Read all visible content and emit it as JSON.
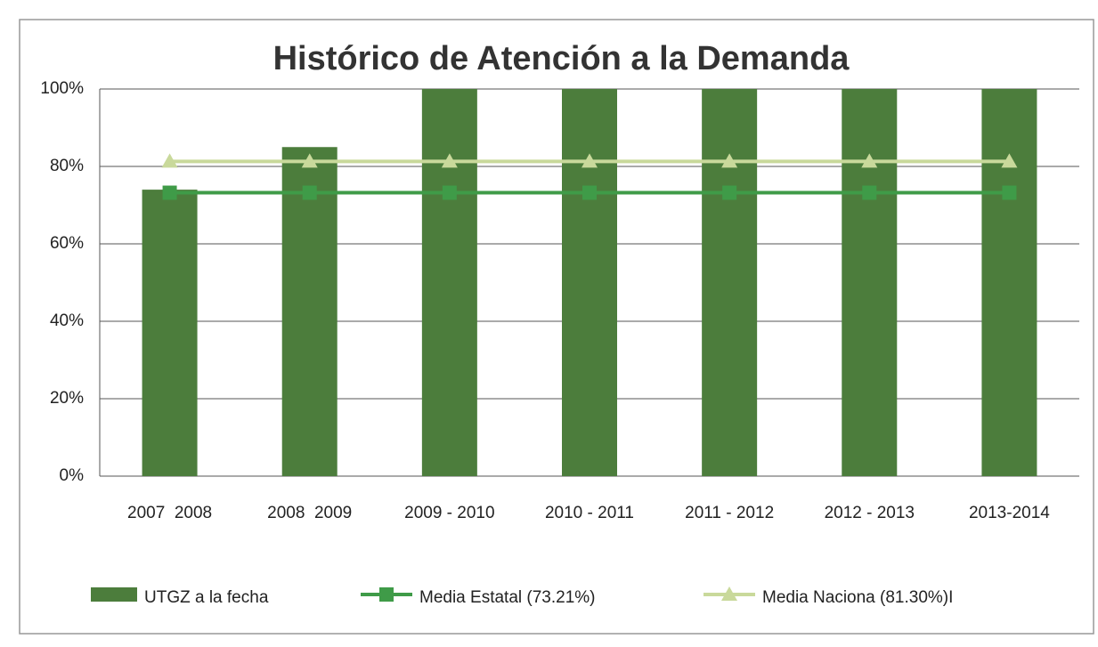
{
  "chart_data": {
    "type": "bar",
    "title": "Histórico de Atención a la Demanda",
    "categories": [
      "2007  2008",
      "2008  2009",
      "2009 - 2010",
      "2010 - 2011",
      "2011 - 2012",
      "2012 - 2013",
      "2013-2014"
    ],
    "series": [
      {
        "name": "UTGZ a la fecha",
        "type": "bar",
        "color": "#4c7d3c",
        "values": [
          74,
          85,
          100,
          100,
          100,
          100,
          100
        ]
      },
      {
        "name": "Media Estatal (73.21%)",
        "type": "line",
        "marker": "square",
        "color": "#3f9b48",
        "values": [
          73.21,
          73.21,
          73.21,
          73.21,
          73.21,
          73.21,
          73.21
        ]
      },
      {
        "name": "Media Naciona (81.30%)I",
        "type": "line",
        "marker": "triangle",
        "color": "#c9d99b",
        "values": [
          81.3,
          81.3,
          81.3,
          81.3,
          81.3,
          81.3,
          81.3
        ]
      }
    ],
    "ylim": [
      0,
      100
    ],
    "yticks": [
      {
        "value": 0,
        "label": "0%"
      },
      {
        "value": 20,
        "label": "20%"
      },
      {
        "value": 40,
        "label": "40%"
      },
      {
        "value": 60,
        "label": "60%"
      },
      {
        "value": 80,
        "label": "80%"
      },
      {
        "value": 100,
        "label": "100%"
      }
    ],
    "grid": true,
    "legend": "bottom"
  }
}
